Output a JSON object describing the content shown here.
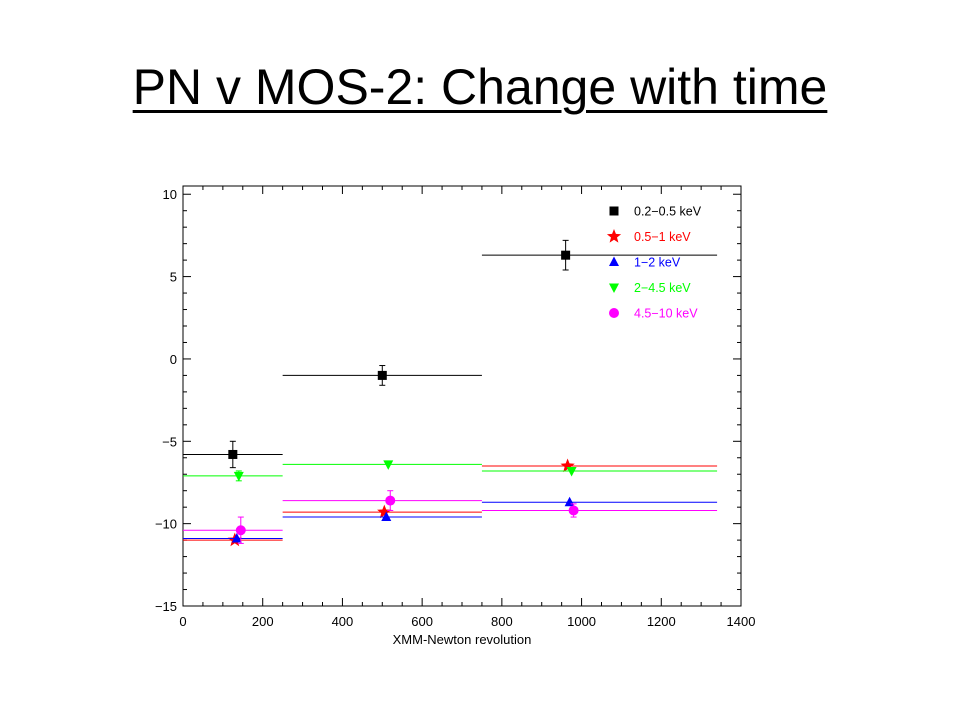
{
  "slide": {
    "title": "PN v MOS-2: Change with time"
  },
  "chart_data": {
    "type": "scatter",
    "title": "",
    "xlabel": "XMM-Newton revolution",
    "ylabel": "",
    "xlim": [
      0,
      1400
    ],
    "ylim": [
      -15,
      10.5
    ],
    "xticks": [
      0,
      200,
      400,
      600,
      800,
      1000,
      1200,
      1400
    ],
    "yticks": [
      -15,
      -10,
      -5,
      0,
      5,
      10
    ],
    "xtick_labels": [
      "0",
      "200",
      "400",
      "600",
      "800",
      "1000",
      "1200",
      "1400"
    ],
    "ytick_labels": [
      "−15",
      "−10",
      "−5",
      "0",
      "5",
      "10"
    ],
    "legend_position": "top-right",
    "bins": [
      [
        0,
        250
      ],
      [
        250,
        750
      ],
      [
        750,
        1340
      ]
    ],
    "series": [
      {
        "name": "0.2−0.5 keV",
        "color": "#000000",
        "marker": "square",
        "points": [
          {
            "x": 125,
            "y": -5.8,
            "xerr": [
              0,
              250
            ],
            "yerr": 0.8
          },
          {
            "x": 500,
            "y": -1.0,
            "xerr": [
              250,
              750
            ],
            "yerr": 0.6
          },
          {
            "x": 960,
            "y": 6.3,
            "xerr": [
              750,
              1340
            ],
            "yerr": 0.9
          }
        ]
      },
      {
        "name": "0.5−1 keV",
        "color": "#ff0000",
        "marker": "star",
        "points": [
          {
            "x": 130,
            "y": -11.0,
            "xerr": [
              0,
              250
            ]
          },
          {
            "x": 505,
            "y": -9.3,
            "xerr": [
              250,
              750
            ]
          },
          {
            "x": 965,
            "y": -6.5,
            "xerr": [
              750,
              1340
            ]
          }
        ]
      },
      {
        "name": "1−2 keV",
        "color": "#0000ff",
        "marker": "triangle-up",
        "points": [
          {
            "x": 135,
            "y": -10.9,
            "xerr": [
              0,
              250
            ]
          },
          {
            "x": 510,
            "y": -9.6,
            "xerr": [
              250,
              750
            ]
          },
          {
            "x": 970,
            "y": -8.7,
            "xerr": [
              750,
              1340
            ]
          }
        ]
      },
      {
        "name": "2−4.5 keV",
        "color": "#00ff00",
        "marker": "triangle-down",
        "points": [
          {
            "x": 140,
            "y": -7.1,
            "xerr": [
              0,
              250
            ],
            "yerr": 0.3
          },
          {
            "x": 515,
            "y": -6.4,
            "xerr": [
              250,
              750
            ]
          },
          {
            "x": 975,
            "y": -6.8,
            "xerr": [
              750,
              1340
            ]
          }
        ]
      },
      {
        "name": "4.5−10 keV",
        "color": "#ff00ff",
        "marker": "circle",
        "points": [
          {
            "x": 145,
            "y": -10.4,
            "xerr": [
              0,
              250
            ],
            "yerr": 0.8
          },
          {
            "x": 520,
            "y": -8.6,
            "xerr": [
              250,
              750
            ],
            "yerr": 0.6
          },
          {
            "x": 980,
            "y": -9.2,
            "xerr": [
              750,
              1340
            ],
            "yerr": 0.4
          }
        ]
      }
    ]
  }
}
